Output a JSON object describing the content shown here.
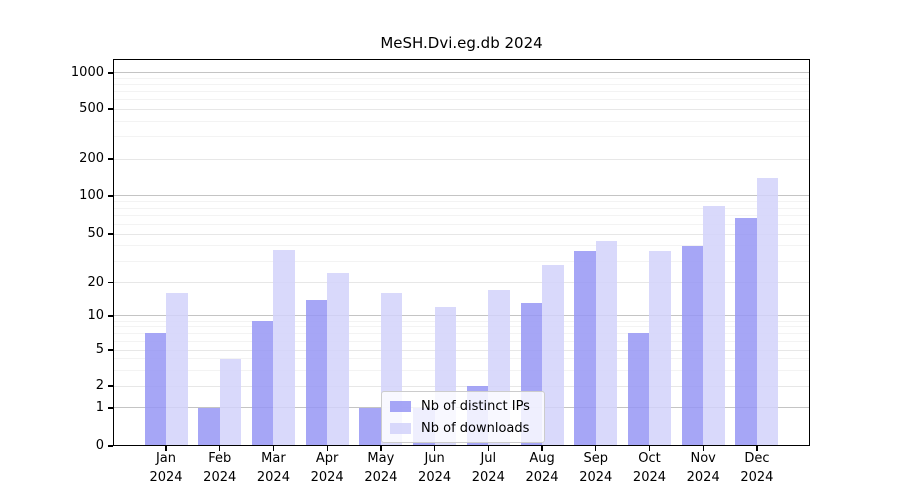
{
  "title": "MeSH.Dvi.eg.db 2024",
  "legend": {
    "items": [
      "Nb of distinct IPs",
      "Nb of downloads"
    ]
  },
  "y_axis": {
    "tick_labels": [
      "0",
      "1",
      "2",
      "5",
      "10",
      "20",
      "50",
      "100",
      "200",
      "500",
      "1000"
    ]
  },
  "x_axis": {
    "months": [
      "Jan",
      "Feb",
      "Mar",
      "Apr",
      "May",
      "Jun",
      "Jul",
      "Aug",
      "Sep",
      "Oct",
      "Nov",
      "Dec"
    ],
    "year": "2024"
  },
  "chart_data": {
    "type": "bar",
    "title": "MeSH.Dvi.eg.db 2024",
    "categories": [
      "Jan 2024",
      "Feb 2024",
      "Mar 2024",
      "Apr 2024",
      "May 2024",
      "Jun 2024",
      "Jul 2024",
      "Aug 2024",
      "Sep 2024",
      "Oct 2024",
      "Nov 2024",
      "Dec 2024"
    ],
    "series": [
      {
        "name": "Nb of distinct IPs",
        "color": "#9696f5",
        "values": [
          7,
          1,
          9,
          14,
          1,
          1,
          2,
          13,
          36,
          7,
          40,
          67
        ]
      },
      {
        "name": "Nb of downloads",
        "color": "#d2d2fa",
        "values": [
          16,
          4,
          37,
          24,
          16,
          12,
          17,
          28,
          44,
          36,
          83,
          140
        ]
      }
    ],
    "yscale": "log-like (0,1,2,5,10,20,50,100,200,500,1000)",
    "yticks": [
      0,
      1,
      2,
      5,
      10,
      20,
      50,
      100,
      200,
      500,
      1000
    ],
    "ylim": [
      0,
      1000
    ],
    "grid": true,
    "legend_position": "lower center inside plot"
  }
}
